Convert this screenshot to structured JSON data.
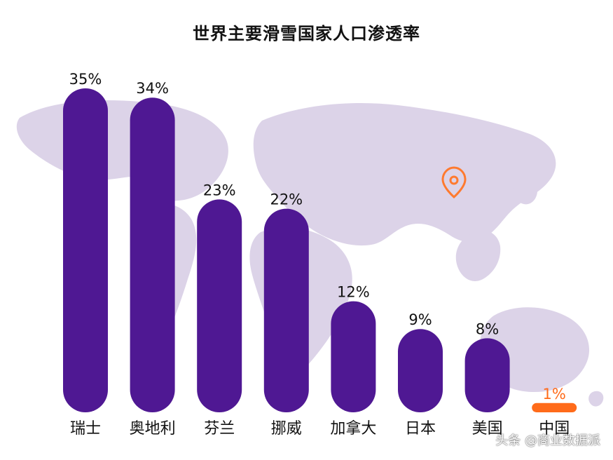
{
  "colors": {
    "bar": "#4f1893",
    "highlight": "#ff6b1a",
    "map": "#dcd3e8",
    "pin": "#ff7a2f",
    "text": "#111111"
  },
  "watermark": {
    "credit": "头条 @商业数据派"
  },
  "chart_data": {
    "type": "bar",
    "title": "世界主要滑雪国家人口渗透率",
    "xlabel": "",
    "ylabel": "",
    "ylim": [
      0,
      40
    ],
    "grid": false,
    "categories": [
      "瑞士",
      "奥地利",
      "芬兰",
      "挪威",
      "加拿大",
      "日本",
      "美国",
      "中国"
    ],
    "values": [
      35,
      34,
      23,
      22,
      12,
      9,
      8,
      1
    ],
    "data_labels": [
      "35%",
      "34%",
      "23%",
      "22%",
      "12%",
      "9%",
      "8%",
      "1%"
    ],
    "highlight_index": 7
  }
}
